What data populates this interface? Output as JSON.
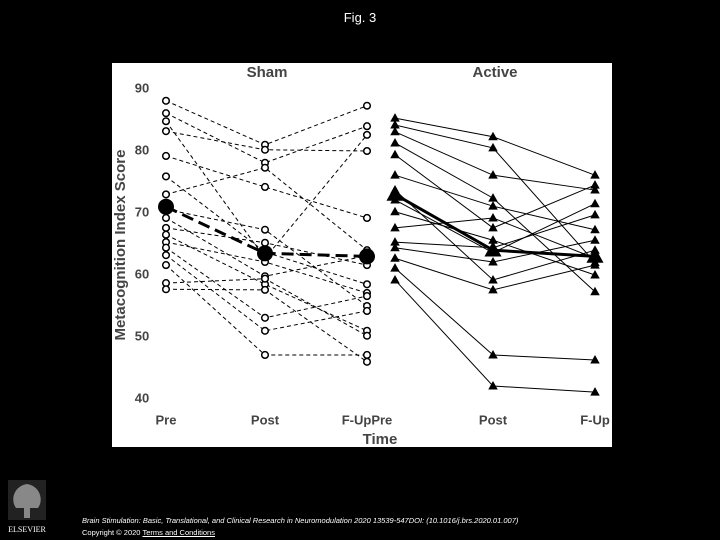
{
  "slide_title": "Fig. 3",
  "chart_data": {
    "type": "line",
    "panels": [
      "Sham",
      "Active"
    ],
    "ylabel": "Metacognition Index Score",
    "xlabel": "Time",
    "categories": [
      "Pre",
      "Post",
      "F-UpPre",
      "Post",
      "F-Up"
    ],
    "ylim": [
      40,
      90
    ],
    "yticks": [
      40,
      50,
      60,
      70,
      80,
      90
    ],
    "series": [
      {
        "values": [
          88.1,
          81.0,
          87.3,
          null,
          null
        ],
        "color": "#000",
        "dashed": true,
        "marker": "circle"
      },
      {
        "values": [
          86.1,
          78.1,
          84.0,
          null,
          null
        ],
        "color": "#000",
        "dashed": true,
        "marker": "circle"
      },
      {
        "values": [
          84.8,
          62.7,
          82.6,
          null,
          null
        ],
        "color": "#000",
        "dashed": true,
        "marker": "circle"
      },
      {
        "values": [
          83.2,
          80.2,
          80.0,
          null,
          null
        ],
        "color": "#000",
        "dashed": true,
        "marker": "circle"
      },
      {
        "values": [
          79.2,
          74.2,
          69.2,
          null,
          null
        ],
        "color": "#000",
        "dashed": true,
        "marker": "circle"
      },
      {
        "values": [
          75.9,
          63.7,
          58.5,
          null,
          null
        ],
        "color": "#000",
        "dashed": true,
        "marker": "circle"
      },
      {
        "values": [
          73.0,
          77.3,
          64.0,
          null,
          null
        ],
        "color": "#000",
        "dashed": true,
        "marker": "circle"
      },
      {
        "values": [
          70.6,
          67.3,
          55.0,
          null,
          null
        ],
        "color": "#000",
        "dashed": true,
        "marker": "circle"
      },
      {
        "values": [
          69.2,
          59.8,
          63.1,
          null,
          null
        ],
        "color": "#000",
        "dashed": true,
        "marker": "circle"
      },
      {
        "values": [
          67.6,
          65.2,
          61.6,
          null,
          null
        ],
        "color": "#000",
        "dashed": true,
        "marker": "circle"
      },
      {
        "values": [
          66.5,
          58.5,
          51.0,
          null,
          null
        ],
        "color": "#000",
        "dashed": true,
        "marker": "circle"
      },
      {
        "values": [
          65.3,
          62.1,
          57.1,
          null,
          null
        ],
        "color": "#000",
        "dashed": true,
        "marker": "circle"
      },
      {
        "values": [
          64.4,
          53.1,
          56.6,
          null,
          null
        ],
        "color": "#000",
        "dashed": true,
        "marker": "circle"
      },
      {
        "values": [
          63.2,
          51.0,
          54.2,
          null,
          null
        ],
        "color": "#000",
        "dashed": true,
        "marker": "circle"
      },
      {
        "values": [
          61.6,
          47.1,
          47.1,
          null,
          null
        ],
        "color": "#000",
        "dashed": true,
        "marker": "circle"
      },
      {
        "values": [
          58.7,
          59.4,
          50.2,
          null,
          null
        ],
        "color": "#000",
        "dashed": true,
        "marker": "circle"
      },
      {
        "values": [
          57.7,
          57.6,
          46.0,
          null,
          null
        ],
        "color": "#000",
        "dashed": true,
        "marker": "circle"
      },
      {
        "values": [
          71,
          63.5,
          63,
          null,
          null
        ],
        "color": "#000",
        "dashed": true,
        "marker": "dot",
        "bold": true
      },
      {
        "values": [
          null,
          null,
          85.3,
          82.3,
          76.1
        ],
        "color": "#000",
        "dashed": false,
        "marker": "triangle"
      },
      {
        "values": [
          null,
          null,
          84.2,
          80.5,
          62.0
        ],
        "color": "#000",
        "dashed": false,
        "marker": "triangle"
      },
      {
        "values": [
          null,
          null,
          83.1,
          76.1,
          73.7
        ],
        "color": "#000",
        "dashed": false,
        "marker": "triangle"
      },
      {
        "values": [
          null,
          null,
          81.3,
          72.4,
          57.3
        ],
        "color": "#000",
        "dashed": false,
        "marker": "triangle"
      },
      {
        "values": [
          null,
          null,
          79.4,
          67.6,
          74.5
        ],
        "color": "#000",
        "dashed": false,
        "marker": "triangle"
      },
      {
        "values": [
          null,
          null,
          76.1,
          71.1,
          67.3
        ],
        "color": "#000",
        "dashed": false,
        "marker": "triangle"
      },
      {
        "values": [
          null,
          null,
          73.7,
          59.2,
          64.0
        ],
        "color": "#000",
        "dashed": false,
        "marker": "triangle"
      },
      {
        "values": [
          null,
          null,
          72.1,
          63.6,
          71.5
        ],
        "color": "#000",
        "dashed": false,
        "marker": "triangle"
      },
      {
        "values": [
          null,
          null,
          70.2,
          65.6,
          60.0
        ],
        "color": "#000",
        "dashed": false,
        "marker": "triangle"
      },
      {
        "values": [
          null,
          null,
          67.6,
          69.2,
          62.7
        ],
        "color": "#000",
        "dashed": false,
        "marker": "triangle"
      },
      {
        "values": [
          null,
          null,
          65.3,
          64.4,
          69.7
        ],
        "color": "#000",
        "dashed": false,
        "marker": "triangle"
      },
      {
        "values": [
          null,
          null,
          64.4,
          62.1,
          65.6
        ],
        "color": "#000",
        "dashed": false,
        "marker": "triangle"
      },
      {
        "values": [
          null,
          null,
          62.7,
          57.6,
          61.6
        ],
        "color": "#000",
        "dashed": false,
        "marker": "triangle"
      },
      {
        "values": [
          null,
          null,
          61.1,
          47.1,
          46.3
        ],
        "color": "#000",
        "dashed": false,
        "marker": "triangle"
      },
      {
        "values": [
          null,
          null,
          59.2,
          42.1,
          41.1
        ],
        "color": "#000",
        "dashed": false,
        "marker": "triangle"
      },
      {
        "values": [
          null,
          null,
          73,
          64,
          63
        ],
        "color": "#000",
        "dashed": false,
        "marker": "triangle",
        "bold": true
      }
    ]
  },
  "footer": {
    "citation": "Brain Stimulation: Basic, Translational, and Clinical Research in Neuromodulation 2020 13539-547DOI: (10.1016/j.brs.2020.01.007)",
    "copyright": "Copyright © 2020",
    "link": "Terms and Conditions"
  },
  "logo": "ELSEVIER"
}
